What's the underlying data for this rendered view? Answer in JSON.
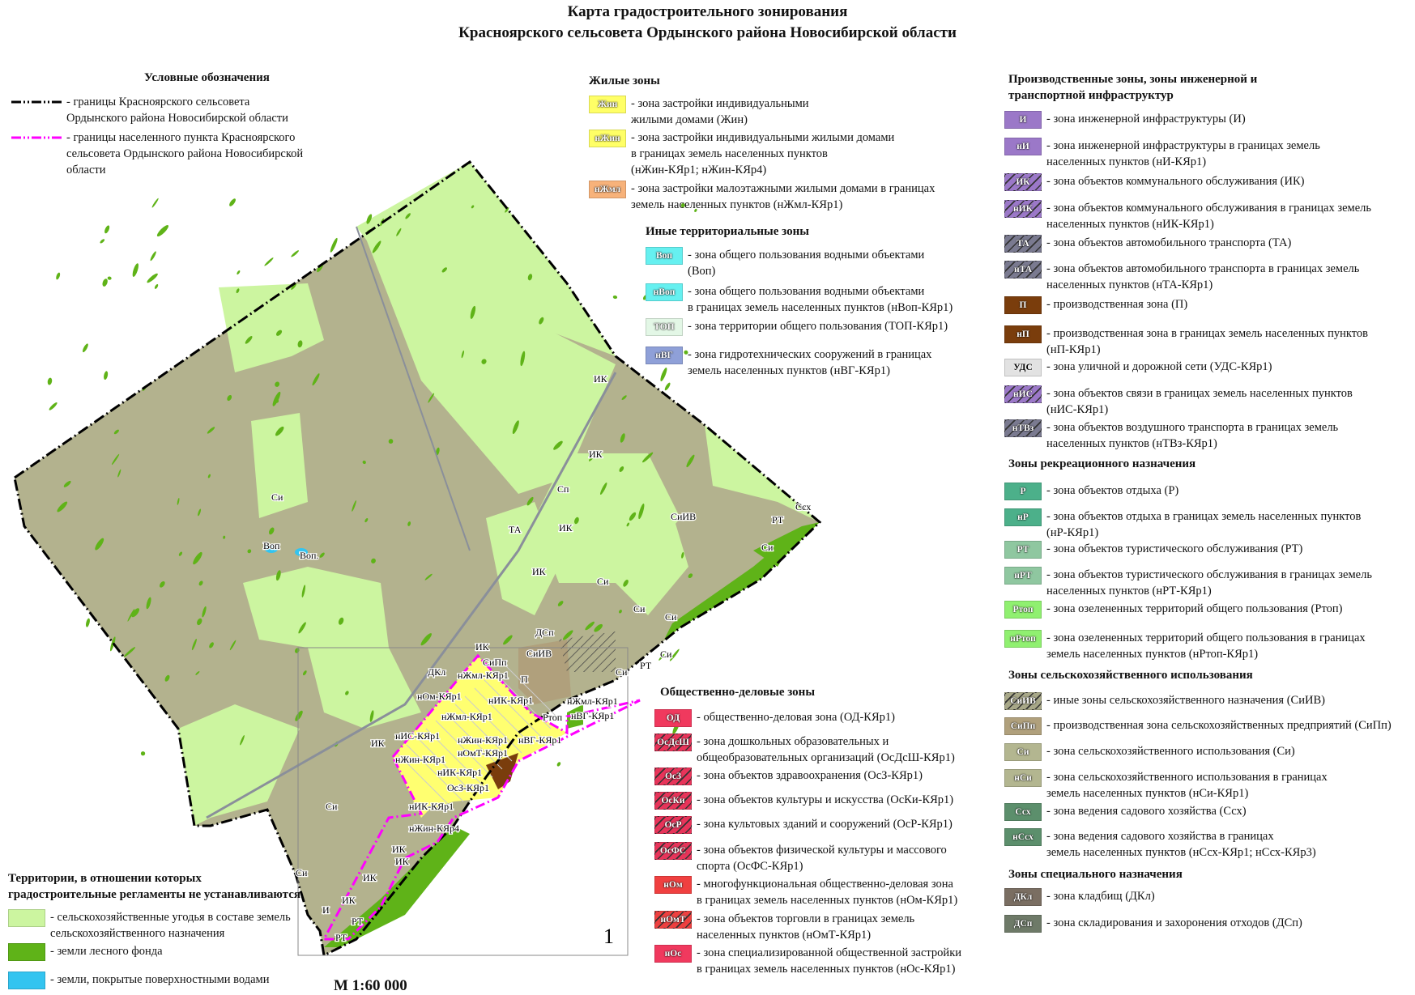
{
  "title": {
    "line1": "Карта градостроительного зонирования",
    "line2": "Красноярского сельсовета Ордынского района Новосибирской области"
  },
  "scale": "М 1:60 000",
  "inset_label": "1",
  "boundaries": {
    "header": "Условные обозначения",
    "items": [
      {
        "style": "black-dash-dot",
        "color": "#000000",
        "text": "- границы Красноярского сельсовета\n  Ордынского района Новосибирской области"
      },
      {
        "style": "magenta-dash-dot",
        "color": "#ff00ff",
        "text": "- границы населенного пункта Красноярского\n  сельсовета Ордынского района Новосибирской\n  области"
      }
    ]
  },
  "no_regulation": {
    "header": "Территории, в отношении которых\nградостроительные регламенты не устанавливаются",
    "items": [
      {
        "color": "#ccf5a0",
        "text": "- сельскохозяйственные угодья в составе земель\n  сельскохозяйственного назначения"
      },
      {
        "color": "#5fb318",
        "text": "- земли лесного фонда"
      },
      {
        "color": "#33c4f0",
        "text": "- земли, покрытые поверхностными водами"
      }
    ]
  },
  "residential": {
    "header": "Жилые зоны",
    "items": [
      {
        "code": "Жин",
        "color": "#ffff66",
        "hatch": false,
        "text": "- зона застройки индивидуальными\n  жилыми домами (Жин)"
      },
      {
        "code": "нЖин",
        "color": "#ffff66",
        "hatch": false,
        "text": "- зона застройки индивидуальными жилыми домами\n  в границах земель населенных пунктов\n  (нЖин-КЯр1; нЖин-КЯр4)"
      },
      {
        "code": "нЖмл",
        "color": "#f7b27a",
        "hatch": false,
        "text": "- зона застройки малоэтажными жилыми домами в границах\n  земель населенных пунктов (нЖмл-КЯр1)"
      }
    ]
  },
  "other": {
    "header": "Иные территориальные зоны",
    "items": [
      {
        "code": "Воп",
        "color": "#66f0f0",
        "hatch": false,
        "text": "- зона общего пользования водными объектами\n  (Воп)"
      },
      {
        "code": "нВоп",
        "color": "#66f0f0",
        "hatch": false,
        "text": "- зона общего пользования водными объектами\n  в границах земель населенных пунктов (нВоп-КЯр1)"
      },
      {
        "code": "ТОП",
        "color": "#e3f7e6",
        "hatch": false,
        "text": "- зона территории общего пользования (ТОП-КЯр1)"
      },
      {
        "code": "нВГ",
        "color": "#8fa0d8",
        "hatch": false,
        "text": "- зона гидротехнических сооружений в границах\n  земель населенных пунктов (нВГ-КЯр1)"
      }
    ]
  },
  "public_business": {
    "header": "Общественно-деловые зоны",
    "items": [
      {
        "code": "ОД",
        "color": "#f0395e",
        "hatch": false,
        "text": "- общественно-деловая зона (ОД-КЯр1)"
      },
      {
        "code": "ОсДсШ",
        "color": "#e8345a",
        "hatch": true,
        "text": "- зона дошкольных образовательных и\n  общеобразовательных организаций (ОсДсШ-КЯр1)"
      },
      {
        "code": "ОсЗ",
        "color": "#e8345a",
        "hatch": true,
        "text": "- зона объектов здравоохранения (ОсЗ-КЯр1)"
      },
      {
        "code": "ОсКи",
        "color": "#e8345a",
        "hatch": true,
        "text": "- зона объектов культуры и искусства (ОсКи-КЯр1)"
      },
      {
        "code": "ОсР",
        "color": "#e8345a",
        "hatch": true,
        "text": "- зона культовых зданий и сооружений (ОсР-КЯр1)"
      },
      {
        "code": "ОсФС",
        "color": "#e8345a",
        "hatch": true,
        "text": "- зона объектов физической культуры и массового\n  спорта (ОсФС-КЯр1)"
      },
      {
        "code": "нОм",
        "color": "#f04040",
        "hatch": false,
        "text": "- многофункциональная общественно-деловая зона\n  в границах земель населенных пунктов (нОм-КЯр1)"
      },
      {
        "code": "нОмТ",
        "color": "#ee4040",
        "hatch": true,
        "text": "- зона объектов торговли в границах земель\n  населенных пунктов (нОмТ-КЯр1)"
      },
      {
        "code": "нОс",
        "color": "#f0395e",
        "hatch": false,
        "text": "- зона специализированной общественной застройки\n  в границах земель населенных пунктов (нОс-КЯр1)"
      }
    ]
  },
  "industrial": {
    "header": "Производственные зоны, зоны инженерной и\nтранспортной инфраструктур",
    "items": [
      {
        "code": "И",
        "color": "#9b78c8",
        "hatch": false,
        "text": "- зона инженерной инфраструктуры (И)"
      },
      {
        "code": "нИ",
        "color": "#9b78c8",
        "hatch": false,
        "text": "- зона инженерной инфраструктуры в границах земель\n  населенных пунктов (нИ-КЯр1)"
      },
      {
        "code": "ИК",
        "color": "#9b78c8",
        "hatch": true,
        "text": "- зона объектов коммунального обслуживания (ИК)"
      },
      {
        "code": "нИК",
        "color": "#9b78c8",
        "hatch": true,
        "text": "- зона объектов коммунального обслуживания в границах земель\n  населенных пунктов (нИК-КЯр1)"
      },
      {
        "code": "ТА",
        "color": "#7a7a90",
        "hatch": true,
        "text": "- зона объектов автомобильного транспорта (ТА)"
      },
      {
        "code": "нТА",
        "color": "#7a7a90",
        "hatch": true,
        "text": "- зона объектов автомобильного транспорта в границах земель\n  населенных пунктов (нТА-КЯр1)"
      },
      {
        "code": "П",
        "color": "#7a3d0c",
        "hatch": false,
        "text": "- производственная зона (П)"
      },
      {
        "code": "нП",
        "color": "#7a3d0c",
        "hatch": false,
        "text": "- производственная зона в границах земель населенных пунктов\n  (нП-КЯр1)"
      },
      {
        "code": "УДС",
        "color": "#e2e2e2",
        "hatch": false,
        "dark": true,
        "text": "- зона уличной и дорожной сети (УДС-КЯр1)"
      },
      {
        "code": "нИС",
        "color": "#9b78c8",
        "hatch": true,
        "text": "- зона объектов связи в границах земель населенных пунктов\n  (нИС-КЯр1)"
      },
      {
        "code": "нТВз",
        "color": "#7a7a90",
        "hatch": true,
        "text": "- зона объектов воздушного транспорта в границах земель\n  населенных пунктов (нТВз-КЯр1)"
      }
    ]
  },
  "recreation": {
    "header": "Зоны рекреационного назначения",
    "items": [
      {
        "code": "Р",
        "color": "#4cb08a",
        "hatch": false,
        "text": "- зона объектов отдыха (Р)"
      },
      {
        "code": "нР",
        "color": "#4cb08a",
        "hatch": false,
        "text": "- зона объектов отдыха в границах земель населенных пунктов\n  (нР-КЯр1)"
      },
      {
        "code": "РТ",
        "color": "#8fc7a0",
        "hatch": false,
        "text": "- зона объектов туристического обслуживания (РТ)"
      },
      {
        "code": "нРТ",
        "color": "#8fc7a0",
        "hatch": false,
        "text": "- зона объектов туристического обслуживания в границах земель\n  населенных пунктов (нРТ-КЯр1)"
      },
      {
        "code": "Ртоп",
        "color": "#90f070",
        "hatch": false,
        "text": "- зона озелененных территорий общего пользования (Ртоп)"
      },
      {
        "code": "нРтоп",
        "color": "#90f070",
        "hatch": false,
        "text": "- зона озелененных территорий общего пользования в границах\n  земель населенных пунктов (нРтоп-КЯр1)"
      }
    ]
  },
  "agricultural": {
    "header": "Зоны сельскохозяйственного использования",
    "items": [
      {
        "code": "СиИВ",
        "color": "#a8a888",
        "hatch": true,
        "text": "- иные зоны сельскохозяйственного назначения (СиИВ)"
      },
      {
        "code": "СиПп",
        "color": "#b0a07c",
        "hatch": false,
        "text": "- производственная зона сельскохозяйственных предприятий (СиПп)"
      },
      {
        "code": "Си",
        "color": "#b3b690",
        "hatch": false,
        "text": "- зона сельскохозяйственного использования (Си)"
      },
      {
        "code": "нСи",
        "color": "#b3b690",
        "hatch": false,
        "text": "- зона сельскохозяйственного использования в границах\n  земель населенных пунктов (нСи-КЯр1)"
      },
      {
        "code": "Ссх",
        "color": "#5c8f6c",
        "hatch": false,
        "text": "- зона ведения садового хозяйства (Ссх)"
      },
      {
        "code": "нСсх",
        "color": "#5c8f6c",
        "hatch": false,
        "text": "- зона ведения садового хозяйства в границах\n  земель населенных пунктов (нСсх-КЯр1; нСсх-КЯр3)"
      }
    ]
  },
  "special": {
    "header": "Зоны специального назначения",
    "items": [
      {
        "code": "ДКл",
        "color": "#7a6e62",
        "hatch": false,
        "text": "- зона кладбищ (ДКл)"
      },
      {
        "code": "ДСп",
        "color": "#6e7a68",
        "hatch": false,
        "text": "- зона складирования и захоронения отходов (ДСп)"
      }
    ]
  },
  "map": {
    "colors": {
      "agri_zone": "#b3b28e",
      "farmland": "#ccf5a0",
      "forest": "#5fb318",
      "water": "#33c4f0",
      "settlement": "#ffff70",
      "road": "#8a8f9a"
    },
    "labels": [
      "Си",
      "Воп",
      "Воп.",
      "ИК",
      "ИК",
      "Сп",
      "ТА",
      "ИК",
      "ИК",
      "Си",
      "СиИВ",
      "Си",
      "РТ",
      "Ссх",
      "Си",
      "Си",
      "ДСп",
      "СиИВ",
      "ИК",
      "СиПп",
      "ДКл",
      "нЖмл-КЯр1",
      "П",
      "нОм-КЯр1",
      "нИК-КЯр1",
      "нЖмл-КЯр1",
      "Си",
      "РТ",
      "Си",
      "Ртоп",
      "нЖмл-КЯр1",
      "нВГ-КЯр1",
      "нИС-КЯр1",
      "ИК",
      "нЖин-КЯр1",
      "нВГ-КЯр1",
      "нЖин-КЯр1",
      "нОмТ-КЯр1",
      "нИК-КЯр1",
      "ОсЗ-КЯр1",
      "нИК-КЯр1",
      "нЖин-КЯр4",
      "ИК",
      "Си",
      "ИК",
      "ИК",
      "ИК",
      "Си",
      "И",
      "РТ",
      "РТ"
    ]
  }
}
